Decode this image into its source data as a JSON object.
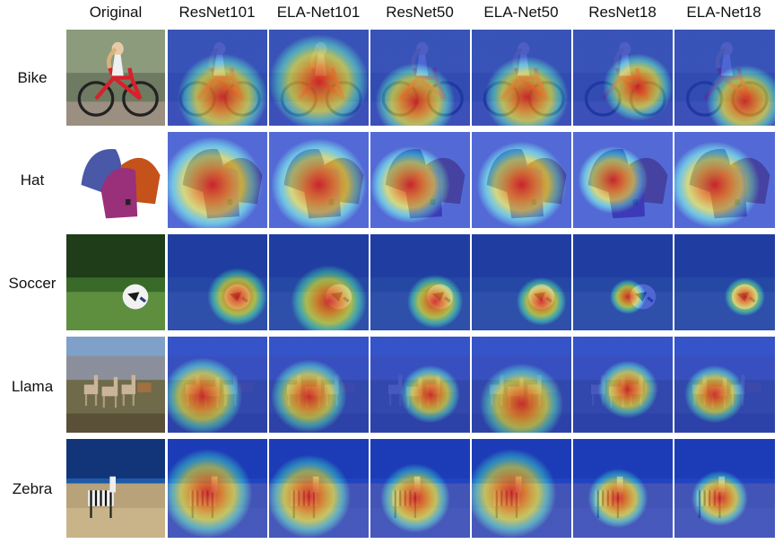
{
  "columns": [
    "Original",
    "ResNet101",
    "ELA-Net101",
    "ResNet50",
    "ELA-Net50",
    "ResNet18",
    "ELA-Net18"
  ],
  "rows": [
    {
      "label": "Bike",
      "scene": "bike"
    },
    {
      "label": "Hat",
      "scene": "hat"
    },
    {
      "label": "Soccer",
      "scene": "soccer"
    },
    {
      "label": "Llama",
      "scene": "llama"
    },
    {
      "label": "Zebra",
      "scene": "zebra"
    }
  ]
}
